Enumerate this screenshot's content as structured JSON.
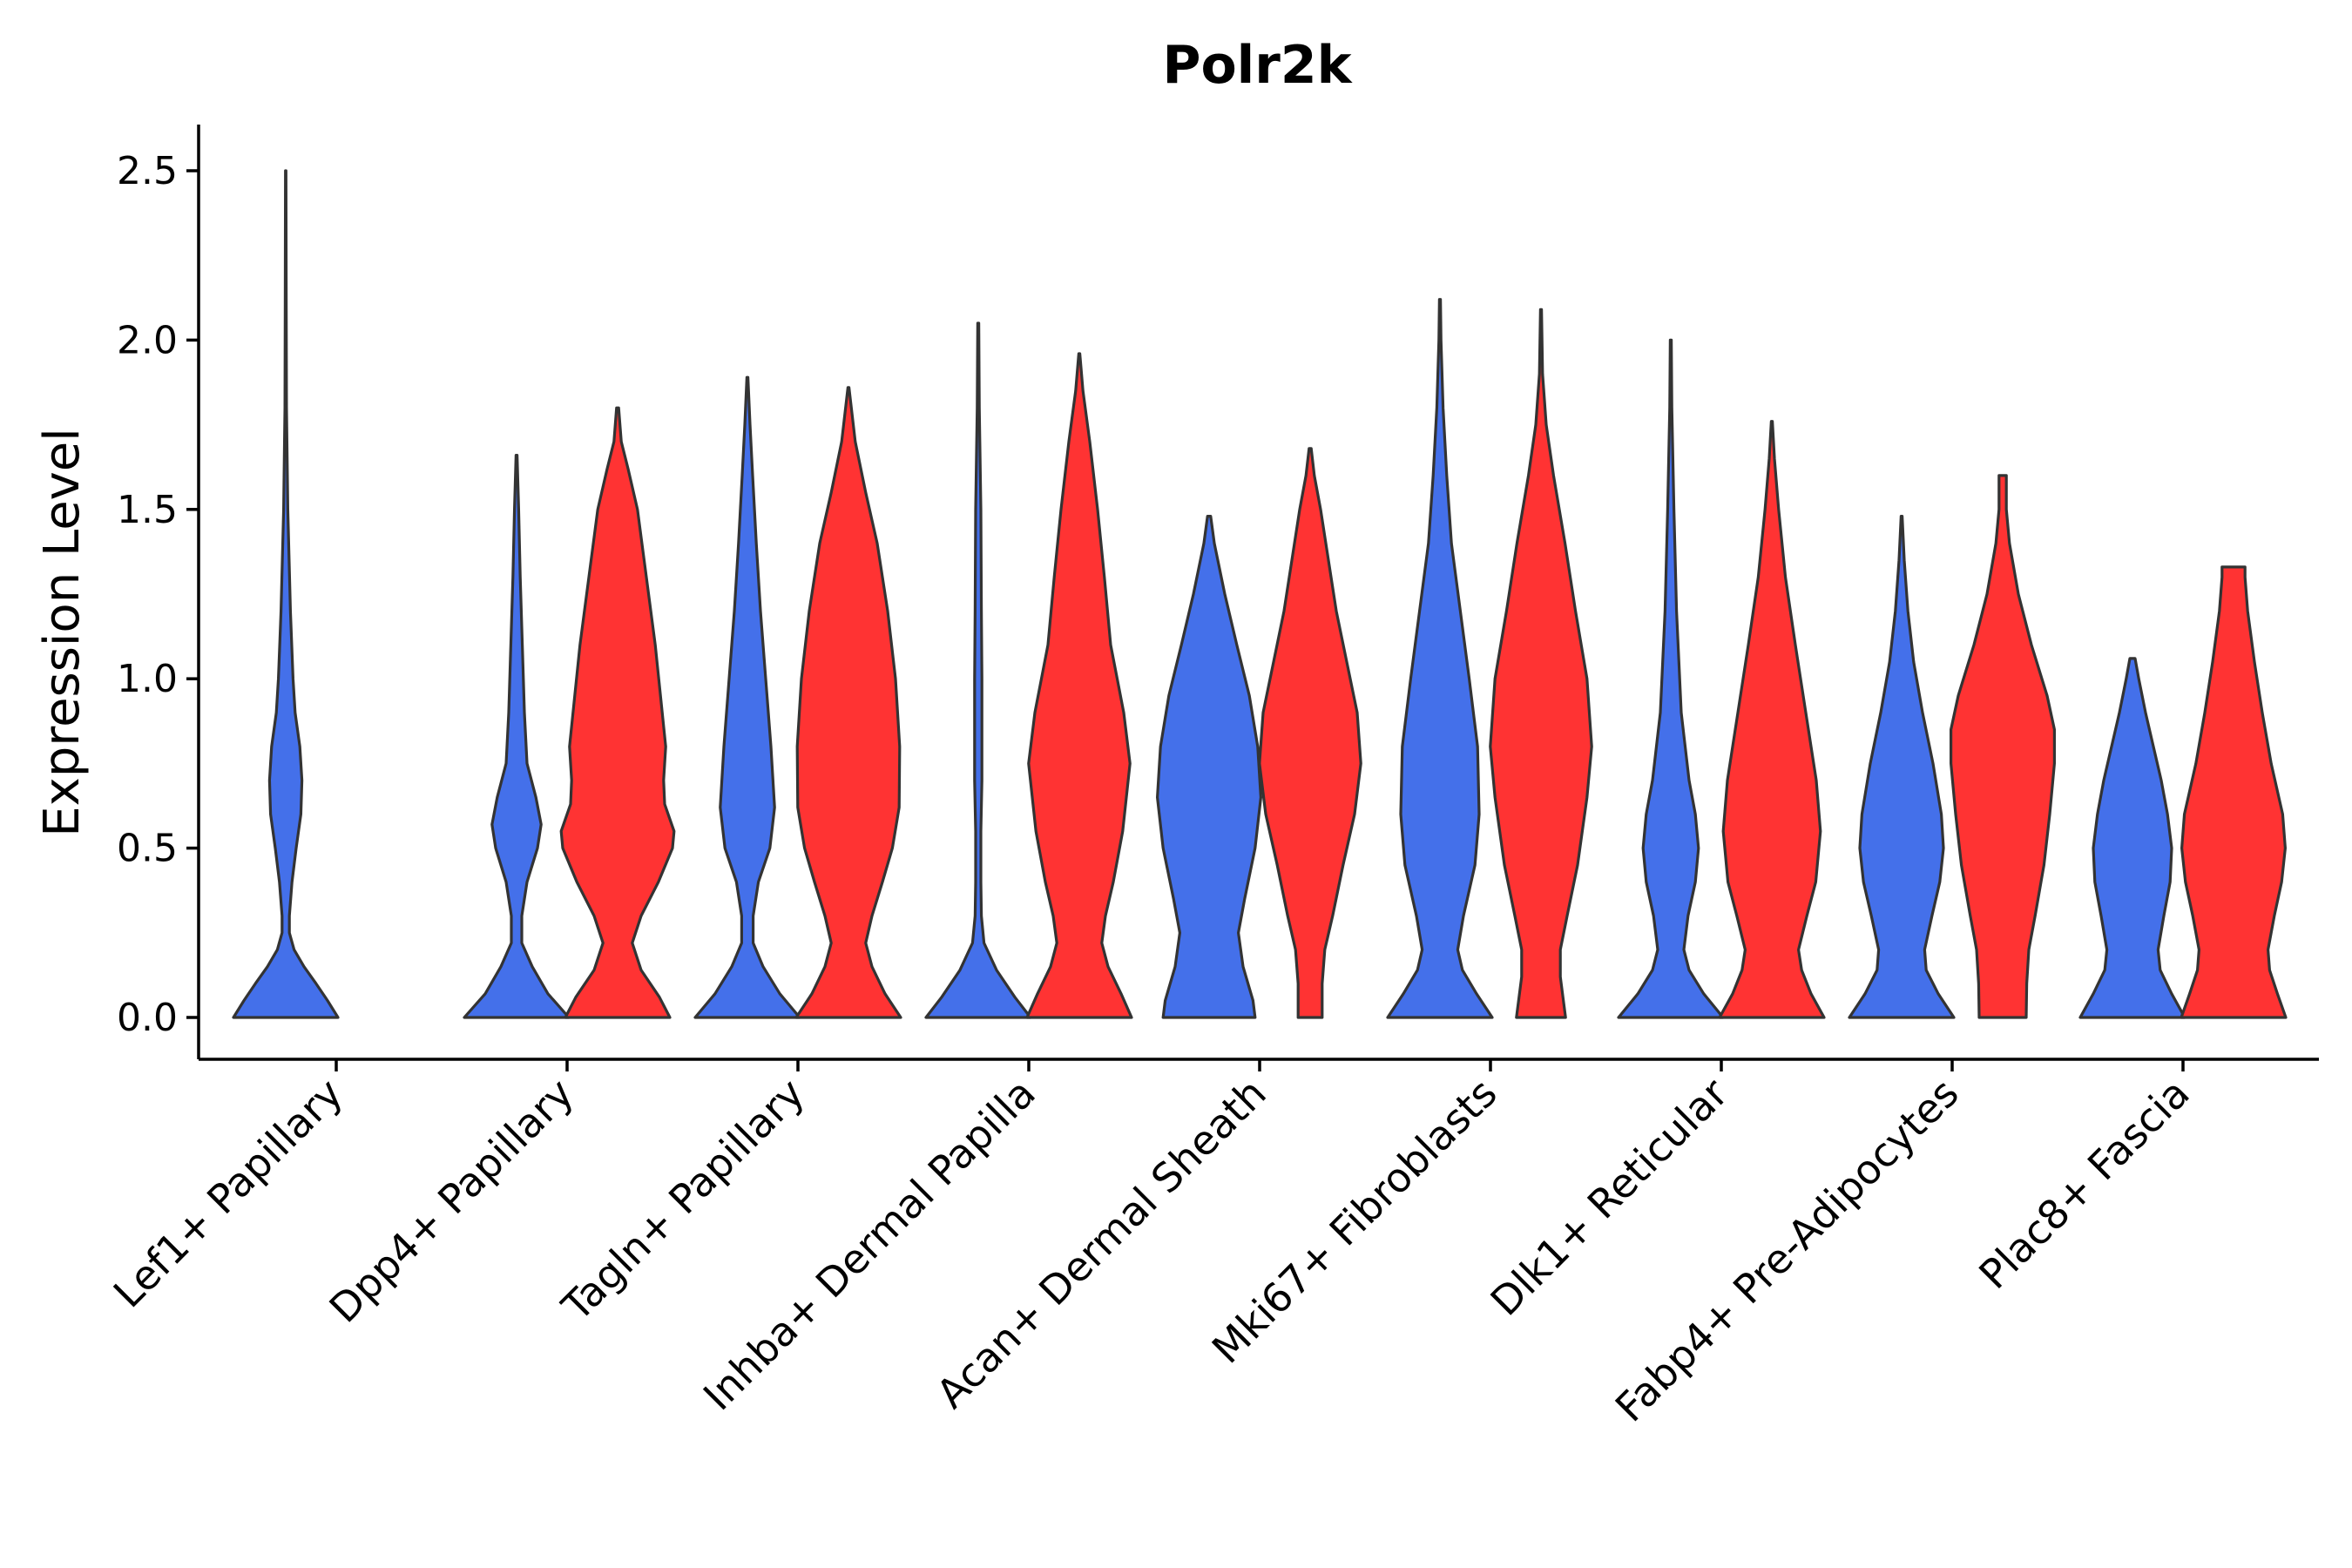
{
  "chart_data": {
    "type": "violin",
    "title": "Polr2k",
    "xlabel": "",
    "ylabel": "Expression Level",
    "ylim": [
      -0.13,
      2.64
    ],
    "yticks": [
      0.0,
      0.5,
      1.0,
      1.5,
      2.0,
      2.5
    ],
    "ytick_labels": [
      "0.0",
      "0.5",
      "1.0",
      "1.5",
      "2.0",
      "2.5"
    ],
    "grid": false,
    "legend": "none",
    "colors": {
      "blue": "#4470EA",
      "red": "#FF3333",
      "outline": "#333333"
    },
    "categories": [
      "Lef1+ Papillary",
      "Dpp4+ Papillary",
      "Tagln+ Papillary",
      "Inhba+ Dermal Papilla",
      "Acan+ Dermal Sheath",
      "Mki67+ Fibroblasts",
      "Dlk1+ Reticular",
      "Fabp4+ Pre-Adipocytes",
      "Plac8+ Fascia"
    ],
    "violins": [
      {
        "category": "Lef1+ Papillary",
        "group": "blue",
        "max": 2.5,
        "profile": [
          [
            0,
            1.0
          ],
          [
            0.05,
            0.8
          ],
          [
            0.1,
            0.58
          ],
          [
            0.15,
            0.35
          ],
          [
            0.2,
            0.16
          ],
          [
            0.25,
            0.07
          ],
          [
            0.3,
            0.07
          ],
          [
            0.4,
            0.12
          ],
          [
            0.5,
            0.2
          ],
          [
            0.6,
            0.29
          ],
          [
            0.7,
            0.31
          ],
          [
            0.8,
            0.27
          ],
          [
            0.9,
            0.18
          ],
          [
            1.0,
            0.14
          ],
          [
            1.2,
            0.09
          ],
          [
            1.5,
            0.04
          ],
          [
            1.8,
            0.015
          ],
          [
            2.1,
            0.01
          ],
          [
            2.5,
            0.005
          ]
        ]
      },
      {
        "category": "Dpp4+ Papillary",
        "group": "blue",
        "max": 1.66,
        "profile": [
          [
            0,
            1.0
          ],
          [
            0.07,
            0.6
          ],
          [
            0.15,
            0.3
          ],
          [
            0.22,
            0.1
          ],
          [
            0.3,
            0.1
          ],
          [
            0.4,
            0.2
          ],
          [
            0.5,
            0.4
          ],
          [
            0.57,
            0.47
          ],
          [
            0.65,
            0.37
          ],
          [
            0.75,
            0.2
          ],
          [
            0.9,
            0.15
          ],
          [
            1.1,
            0.11
          ],
          [
            1.3,
            0.07
          ],
          [
            1.5,
            0.04
          ],
          [
            1.66,
            0.01
          ]
        ]
      },
      {
        "category": "Dpp4+ Papillary",
        "group": "red",
        "max": 1.8,
        "profile": [
          [
            0,
            1.0
          ],
          [
            0.06,
            0.8
          ],
          [
            0.14,
            0.45
          ],
          [
            0.22,
            0.28
          ],
          [
            0.3,
            0.45
          ],
          [
            0.4,
            0.78
          ],
          [
            0.5,
            1.05
          ],
          [
            0.55,
            1.08
          ],
          [
            0.63,
            0.9
          ],
          [
            0.7,
            0.88
          ],
          [
            0.8,
            0.92
          ],
          [
            0.95,
            0.82
          ],
          [
            1.1,
            0.72
          ],
          [
            1.3,
            0.55
          ],
          [
            1.5,
            0.38
          ],
          [
            1.62,
            0.2
          ],
          [
            1.7,
            0.07
          ],
          [
            1.8,
            0.02
          ]
        ]
      },
      {
        "category": "Tagln+ Papillary",
        "group": "blue",
        "max": 1.89,
        "profile": [
          [
            0,
            1.0
          ],
          [
            0.07,
            0.62
          ],
          [
            0.15,
            0.3
          ],
          [
            0.22,
            0.11
          ],
          [
            0.3,
            0.11
          ],
          [
            0.4,
            0.21
          ],
          [
            0.5,
            0.43
          ],
          [
            0.62,
            0.52
          ],
          [
            0.8,
            0.45
          ],
          [
            1.0,
            0.35
          ],
          [
            1.2,
            0.25
          ],
          [
            1.4,
            0.17
          ],
          [
            1.6,
            0.1
          ],
          [
            1.75,
            0.05
          ],
          [
            1.89,
            0.01
          ]
        ]
      },
      {
        "category": "Tagln+ Papillary",
        "group": "red",
        "max": 1.86,
        "profile": [
          [
            0,
            1.0
          ],
          [
            0.07,
            0.7
          ],
          [
            0.15,
            0.45
          ],
          [
            0.22,
            0.33
          ],
          [
            0.3,
            0.45
          ],
          [
            0.4,
            0.65
          ],
          [
            0.5,
            0.84
          ],
          [
            0.62,
            0.97
          ],
          [
            0.8,
            0.98
          ],
          [
            1.0,
            0.9
          ],
          [
            1.2,
            0.75
          ],
          [
            1.4,
            0.55
          ],
          [
            1.55,
            0.33
          ],
          [
            1.7,
            0.13
          ],
          [
            1.86,
            0.01
          ]
        ]
      },
      {
        "category": "Inhba+ Dermal Papilla",
        "group": "blue",
        "max": 2.05,
        "profile": [
          [
            0,
            1.0
          ],
          [
            0.06,
            0.7
          ],
          [
            0.14,
            0.35
          ],
          [
            0.22,
            0.11
          ],
          [
            0.3,
            0.06
          ],
          [
            0.4,
            0.05
          ],
          [
            0.55,
            0.05
          ],
          [
            0.7,
            0.07
          ],
          [
            0.85,
            0.07
          ],
          [
            1.0,
            0.07
          ],
          [
            1.2,
            0.06
          ],
          [
            1.5,
            0.05
          ],
          [
            1.8,
            0.02
          ],
          [
            2.05,
            0.01
          ]
        ]
      },
      {
        "category": "Inhba+ Dermal Papilla",
        "group": "red",
        "max": 1.96,
        "profile": [
          [
            0,
            1.0
          ],
          [
            0.07,
            0.8
          ],
          [
            0.15,
            0.55
          ],
          [
            0.22,
            0.43
          ],
          [
            0.3,
            0.5
          ],
          [
            0.4,
            0.65
          ],
          [
            0.55,
            0.83
          ],
          [
            0.75,
            0.97
          ],
          [
            0.9,
            0.85
          ],
          [
            1.1,
            0.6
          ],
          [
            1.3,
            0.48
          ],
          [
            1.5,
            0.35
          ],
          [
            1.7,
            0.2
          ],
          [
            1.85,
            0.07
          ],
          [
            1.96,
            0.01
          ]
        ]
      },
      {
        "category": "Acan+ Dermal Sheath",
        "group": "blue",
        "max": 1.48,
        "profile": [
          [
            0,
            0.88
          ],
          [
            0.05,
            0.84
          ],
          [
            0.15,
            0.65
          ],
          [
            0.25,
            0.56
          ],
          [
            0.35,
            0.68
          ],
          [
            0.5,
            0.88
          ],
          [
            0.65,
            0.99
          ],
          [
            0.8,
            0.93
          ],
          [
            0.95,
            0.77
          ],
          [
            1.1,
            0.53
          ],
          [
            1.25,
            0.3
          ],
          [
            1.4,
            0.1
          ],
          [
            1.48,
            0.03
          ]
        ]
      },
      {
        "category": "Acan+ Dermal Sheath",
        "group": "red",
        "max": 1.68,
        "profile": [
          [
            0,
            0.23
          ],
          [
            0.1,
            0.23
          ],
          [
            0.2,
            0.28
          ],
          [
            0.3,
            0.43
          ],
          [
            0.45,
            0.63
          ],
          [
            0.6,
            0.85
          ],
          [
            0.75,
            0.97
          ],
          [
            0.9,
            0.9
          ],
          [
            1.05,
            0.7
          ],
          [
            1.2,
            0.5
          ],
          [
            1.35,
            0.35
          ],
          [
            1.5,
            0.2
          ],
          [
            1.6,
            0.08
          ],
          [
            1.68,
            0.02
          ]
        ]
      },
      {
        "category": "Mki67+ Fibroblasts",
        "group": "blue",
        "max": 2.12,
        "profile": [
          [
            0,
            1.0
          ],
          [
            0.07,
            0.7
          ],
          [
            0.14,
            0.43
          ],
          [
            0.2,
            0.34
          ],
          [
            0.3,
            0.45
          ],
          [
            0.45,
            0.67
          ],
          [
            0.6,
            0.75
          ],
          [
            0.8,
            0.72
          ],
          [
            1.0,
            0.56
          ],
          [
            1.2,
            0.39
          ],
          [
            1.4,
            0.22
          ],
          [
            1.6,
            0.13
          ],
          [
            1.8,
            0.06
          ],
          [
            2.0,
            0.02
          ],
          [
            2.12,
            0.01
          ]
        ]
      },
      {
        "category": "Mki67+ Fibroblasts",
        "group": "red",
        "max": 2.09,
        "profile": [
          [
            0,
            0.47
          ],
          [
            0.06,
            0.42
          ],
          [
            0.12,
            0.37
          ],
          [
            0.2,
            0.37
          ],
          [
            0.3,
            0.5
          ],
          [
            0.45,
            0.7
          ],
          [
            0.65,
            0.88
          ],
          [
            0.8,
            0.97
          ],
          [
            1.0,
            0.88
          ],
          [
            1.2,
            0.66
          ],
          [
            1.4,
            0.46
          ],
          [
            1.6,
            0.24
          ],
          [
            1.75,
            0.1
          ],
          [
            1.9,
            0.03
          ],
          [
            2.09,
            0.01
          ]
        ]
      },
      {
        "category": "Dlk1+ Reticular",
        "group": "blue",
        "max": 2.0,
        "profile": [
          [
            0,
            1.0
          ],
          [
            0.07,
            0.63
          ],
          [
            0.14,
            0.35
          ],
          [
            0.2,
            0.25
          ],
          [
            0.3,
            0.33
          ],
          [
            0.4,
            0.47
          ],
          [
            0.5,
            0.53
          ],
          [
            0.6,
            0.47
          ],
          [
            0.7,
            0.35
          ],
          [
            0.9,
            0.2
          ],
          [
            1.2,
            0.11
          ],
          [
            1.5,
            0.06
          ],
          [
            1.8,
            0.02
          ],
          [
            2.0,
            0.01
          ]
        ]
      },
      {
        "category": "Dlk1+ Reticular",
        "group": "red",
        "max": 1.76,
        "profile": [
          [
            0,
            1.0
          ],
          [
            0.07,
            0.75
          ],
          [
            0.14,
            0.57
          ],
          [
            0.2,
            0.51
          ],
          [
            0.3,
            0.67
          ],
          [
            0.4,
            0.84
          ],
          [
            0.55,
            0.93
          ],
          [
            0.7,
            0.85
          ],
          [
            0.9,
            0.65
          ],
          [
            1.1,
            0.45
          ],
          [
            1.3,
            0.26
          ],
          [
            1.5,
            0.13
          ],
          [
            1.65,
            0.05
          ],
          [
            1.76,
            0.01
          ]
        ]
      },
      {
        "category": "Fabp4+ Pre-Adipocytes",
        "group": "blue",
        "max": 1.48,
        "profile": [
          [
            0,
            1.0
          ],
          [
            0.07,
            0.7
          ],
          [
            0.14,
            0.47
          ],
          [
            0.2,
            0.44
          ],
          [
            0.3,
            0.58
          ],
          [
            0.4,
            0.73
          ],
          [
            0.5,
            0.8
          ],
          [
            0.6,
            0.76
          ],
          [
            0.75,
            0.6
          ],
          [
            0.9,
            0.4
          ],
          [
            1.05,
            0.23
          ],
          [
            1.2,
            0.12
          ],
          [
            1.35,
            0.05
          ],
          [
            1.48,
            0.01
          ]
        ]
      },
      {
        "category": "Fabp4+ Pre-Adipocytes",
        "group": "red",
        "max": 1.6,
        "profile": [
          [
            0,
            0.45
          ],
          [
            0.1,
            0.46
          ],
          [
            0.2,
            0.5
          ],
          [
            0.3,
            0.62
          ],
          [
            0.45,
            0.79
          ],
          [
            0.6,
            0.9
          ],
          [
            0.75,
            0.99
          ],
          [
            0.85,
            0.99
          ],
          [
            0.95,
            0.85
          ],
          [
            1.1,
            0.55
          ],
          [
            1.25,
            0.3
          ],
          [
            1.4,
            0.13
          ],
          [
            1.5,
            0.07
          ],
          [
            1.6,
            0.07
          ]
        ]
      },
      {
        "category": "Plac8+ Fascia",
        "group": "blue",
        "max": 1.06,
        "profile": [
          [
            0,
            1.0
          ],
          [
            0.07,
            0.75
          ],
          [
            0.14,
            0.53
          ],
          [
            0.2,
            0.49
          ],
          [
            0.3,
            0.6
          ],
          [
            0.4,
            0.72
          ],
          [
            0.5,
            0.75
          ],
          [
            0.6,
            0.67
          ],
          [
            0.7,
            0.55
          ],
          [
            0.8,
            0.4
          ],
          [
            0.9,
            0.25
          ],
          [
            1.0,
            0.12
          ],
          [
            1.06,
            0.05
          ]
        ]
      },
      {
        "category": "Plac8+ Fascia",
        "group": "red",
        "max": 1.33,
        "profile": [
          [
            0,
            1.0
          ],
          [
            0.07,
            0.84
          ],
          [
            0.14,
            0.69
          ],
          [
            0.2,
            0.66
          ],
          [
            0.3,
            0.78
          ],
          [
            0.4,
            0.92
          ],
          [
            0.5,
            0.99
          ],
          [
            0.6,
            0.94
          ],
          [
            0.75,
            0.72
          ],
          [
            0.9,
            0.55
          ],
          [
            1.05,
            0.4
          ],
          [
            1.2,
            0.27
          ],
          [
            1.3,
            0.22
          ],
          [
            1.33,
            0.22
          ]
        ]
      }
    ]
  }
}
